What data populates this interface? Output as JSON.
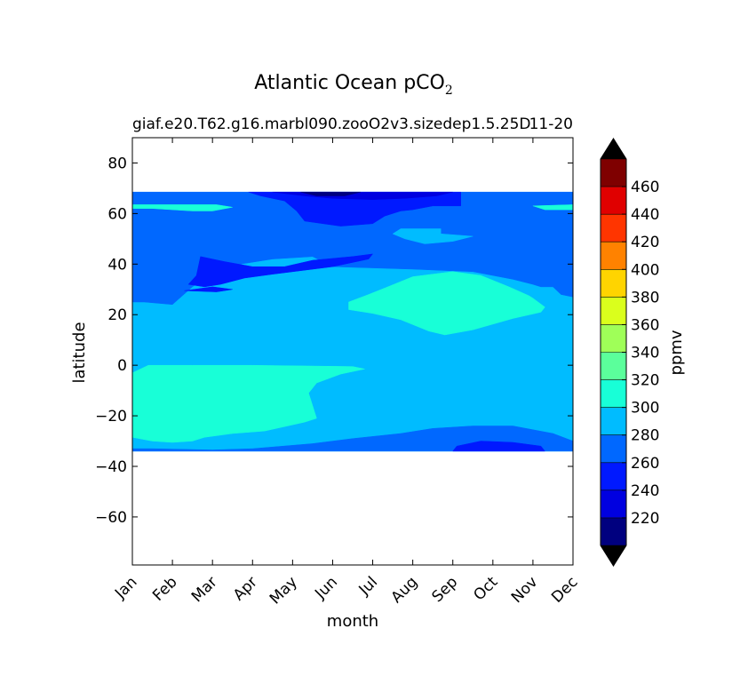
{
  "chart_data": {
    "type": "heatmap",
    "title": "Atlantic Ocean pCO",
    "title_subscript": "2",
    "subtitle_left": "giaf.e20.T62.g16.marbl090.zooO2v3.sizedep1.5.25D",
    "subtitle_right": "11-20",
    "xlabel": "month",
    "ylabel": "latitude",
    "colorbar_label": "ppmv",
    "x_tick_labels": [
      "Jan",
      "Feb",
      "Mar",
      "Apr",
      "May",
      "Jun",
      "Jul",
      "Aug",
      "Sep",
      "Oct",
      "Nov",
      "Dec"
    ],
    "y_ticks": [
      80,
      60,
      40,
      20,
      0,
      -20,
      -40,
      -60
    ],
    "y_tick_labels": [
      "80",
      "60",
      "40",
      "20",
      "0",
      "−20",
      "−40",
      "−60"
    ],
    "ylim": [
      -79,
      90
    ],
    "data_lat_range": [
      -34,
      68.5
    ],
    "grid": false,
    "legend": "colorbar-right",
    "levels": [
      200,
      220,
      240,
      260,
      280,
      300,
      320,
      340,
      360,
      380,
      400,
      420,
      440,
      460,
      480
    ],
    "colorbar_tick_values": [
      220,
      240,
      260,
      280,
      300,
      320,
      340,
      360,
      380,
      400,
      420,
      440,
      460
    ],
    "colorbar_tick_labels": [
      "220",
      "240",
      "260",
      "280",
      "300",
      "320",
      "340",
      "360",
      "380",
      "400",
      "420",
      "440",
      "460"
    ],
    "colors": [
      "#00007f",
      "#0000e0",
      "#0019ff",
      "#0068ff",
      "#00bcff",
      "#18ffd7",
      "#5bff9b",
      "#9fff58",
      "#daff1c",
      "#ffd400",
      "#ff8200",
      "#ff3500",
      "#e00000",
      "#7f0000"
    ],
    "extend_color": "#000000",
    "regions": [
      {
        "label": "280-300",
        "value_range": [
          280,
          300
        ],
        "color": "#00bcff",
        "outline": [
          [
            0,
            68.5
          ],
          [
            11,
            68.5
          ],
          [
            11,
            -34
          ],
          [
            0,
            -34
          ]
        ]
      },
      {
        "label": "260-280 south",
        "value_range": [
          260,
          280
        ],
        "color": "#0068ff",
        "outline": [
          [
            0,
            -33
          ],
          [
            0.5,
            -33
          ],
          [
            2,
            -33.5
          ],
          [
            3,
            -33
          ],
          [
            4.5,
            -31
          ],
          [
            5.5,
            -29
          ],
          [
            6.7,
            -27
          ],
          [
            7.5,
            -25
          ],
          [
            8.5,
            -24
          ],
          [
            9.5,
            -24
          ],
          [
            10.5,
            -27
          ],
          [
            11,
            -30
          ],
          [
            11,
            -34
          ],
          [
            0,
            -34
          ]
        ]
      },
      {
        "label": "240-260 south",
        "value_range": [
          240,
          260
        ],
        "color": "#0019ff",
        "outline": [
          [
            8,
            -34
          ],
          [
            8.1,
            -32
          ],
          [
            8.7,
            -30
          ],
          [
            9.5,
            -30.5
          ],
          [
            10.2,
            -32
          ],
          [
            10.3,
            -34
          ]
        ]
      },
      {
        "label": "260-280 north",
        "value_range": [
          260,
          280
        ],
        "color": "#0068ff",
        "outline": [
          [
            0,
            68.5
          ],
          [
            11,
            68.5
          ],
          [
            11,
            27
          ],
          [
            10.7,
            28
          ],
          [
            10.5,
            31
          ],
          [
            10.2,
            31
          ],
          [
            10,
            32
          ],
          [
            9.5,
            34
          ],
          [
            8.5,
            37
          ],
          [
            7,
            38
          ],
          [
            5,
            39
          ],
          [
            4.5,
            43
          ],
          [
            3.5,
            42
          ],
          [
            2.7,
            40
          ],
          [
            2,
            37
          ],
          [
            1.5,
            31
          ],
          [
            1,
            24
          ],
          [
            0.3,
            25
          ],
          [
            0,
            25
          ]
        ]
      },
      {
        "label": "240-260 north",
        "value_range": [
          240,
          260
        ],
        "color": "#0019ff",
        "outline": [
          [
            2.9,
            68.5
          ],
          [
            8.2,
            68.5
          ],
          [
            8.2,
            63
          ],
          [
            7.5,
            63
          ],
          [
            7,
            61.5
          ],
          [
            6.7,
            61
          ],
          [
            6.3,
            59
          ],
          [
            6,
            56
          ],
          [
            5.2,
            55
          ],
          [
            4.3,
            57
          ],
          [
            4.1,
            61
          ],
          [
            3.8,
            65
          ],
          [
            3.2,
            67
          ]
        ]
      },
      {
        "label": "240-260 north atlantic",
        "value_range": [
          240,
          260
        ],
        "color": "#0019ff",
        "outline": [
          [
            1.7,
            43
          ],
          [
            2.3,
            41
          ],
          [
            3,
            39
          ],
          [
            3.8,
            39
          ],
          [
            4.5,
            41.5
          ],
          [
            5.5,
            43
          ],
          [
            6,
            44
          ],
          [
            5.9,
            42
          ],
          [
            5,
            39
          ],
          [
            3.5,
            36
          ],
          [
            2.8,
            34.5
          ],
          [
            2.2,
            32
          ],
          [
            1.8,
            31
          ],
          [
            1.4,
            32
          ],
          [
            1.6,
            35.5
          ]
        ]
      },
      {
        "label": "220-240 north",
        "value_range": [
          220,
          240
        ],
        "color": "#0000e0",
        "outline": [
          [
            3.5,
            68.5
          ],
          [
            8,
            68.5
          ],
          [
            7.6,
            67
          ],
          [
            6.8,
            66
          ],
          [
            6,
            65.5
          ],
          [
            5,
            66
          ],
          [
            4.3,
            67
          ]
        ]
      },
      {
        "label": "200-220 north",
        "value_range": [
          200,
          220
        ],
        "color": "#00007f",
        "outline": [
          [
            4.2,
            68.5
          ],
          [
            5.7,
            68.5
          ],
          [
            5.3,
            67
          ],
          [
            4.6,
            67
          ]
        ]
      },
      {
        "label": "300-320 tropics",
        "value_range": [
          300,
          320
        ],
        "color": "#18ffd7",
        "outline": [
          [
            5.4,
            22
          ],
          [
            5.4,
            25
          ],
          [
            5.9,
            28
          ],
          [
            6.3,
            30.5
          ],
          [
            7,
            35
          ],
          [
            8,
            37
          ],
          [
            8.7,
            35.5
          ],
          [
            9.4,
            31
          ],
          [
            9.9,
            27.5
          ],
          [
            10,
            26.5
          ],
          [
            10.3,
            23
          ],
          [
            10.2,
            21
          ],
          [
            9.5,
            18.5
          ],
          [
            8.5,
            14
          ],
          [
            7.8,
            12
          ],
          [
            7.4,
            13.5
          ],
          [
            6.7,
            18
          ],
          [
            6,
            20.5
          ]
        ]
      },
      {
        "label": "300-320 south",
        "value_range": [
          300,
          320
        ],
        "color": "#18ffd7",
        "outline": [
          [
            0,
            -3
          ],
          [
            0.4,
            0
          ],
          [
            1.5,
            0
          ],
          [
            3,
            0
          ],
          [
            5.5,
            -0.5
          ],
          [
            5.8,
            -1.5
          ],
          [
            5.2,
            -3.5
          ],
          [
            4.6,
            -7
          ],
          [
            4.4,
            -11
          ],
          [
            4.6,
            -21
          ],
          [
            4.3,
            -22.5
          ],
          [
            3.3,
            -26
          ],
          [
            2.5,
            -27
          ],
          [
            1.8,
            -28.5
          ],
          [
            1.5,
            -30
          ],
          [
            1,
            -30.5
          ],
          [
            0.5,
            -30
          ],
          [
            0,
            -28.5
          ]
        ]
      },
      {
        "label": "300-320 north edge",
        "value_range": [
          300,
          320
        ],
        "color": "#18ffd7",
        "outline": [
          [
            0,
            63.5
          ],
          [
            2.1,
            63.5
          ],
          [
            2.5,
            62.5
          ],
          [
            2,
            61
          ],
          [
            1.5,
            61
          ],
          [
            0.5,
            62
          ],
          [
            0,
            62
          ]
        ]
      },
      {
        "label": "300-320 northeast edge",
        "value_range": [
          300,
          320
        ],
        "color": "#18ffd7",
        "outline": [
          [
            10,
            63
          ],
          [
            11,
            63.5
          ],
          [
            11,
            61.5
          ],
          [
            10.3,
            61.5
          ]
        ]
      },
      {
        "label": "280-300 north patch",
        "value_range": [
          280,
          300
        ],
        "color": "#00bcff",
        "outline": [
          [
            6.7,
            54
          ],
          [
            7.7,
            54
          ],
          [
            7.7,
            52
          ],
          [
            8.5,
            51
          ],
          [
            8,
            49
          ],
          [
            7.3,
            48
          ],
          [
            6.8,
            50
          ],
          [
            6.5,
            52
          ]
        ]
      },
      {
        "label": "280-300 southeast patch",
        "value_range": [
          280,
          300
        ],
        "color": "#00bcff",
        "outline": [
          [
            10.5,
            -1.5
          ],
          [
            11,
            -1.5
          ],
          [
            11,
            -3
          ],
          [
            10.5,
            -3
          ]
        ]
      },
      {
        "label": "240-260 small patch",
        "value_range": [
          240,
          260
        ],
        "color": "#0019ff",
        "outline": [
          [
            1.3,
            29.5
          ],
          [
            2,
            31
          ],
          [
            2.5,
            30
          ],
          [
            2.1,
            29
          ]
        ]
      }
    ]
  }
}
